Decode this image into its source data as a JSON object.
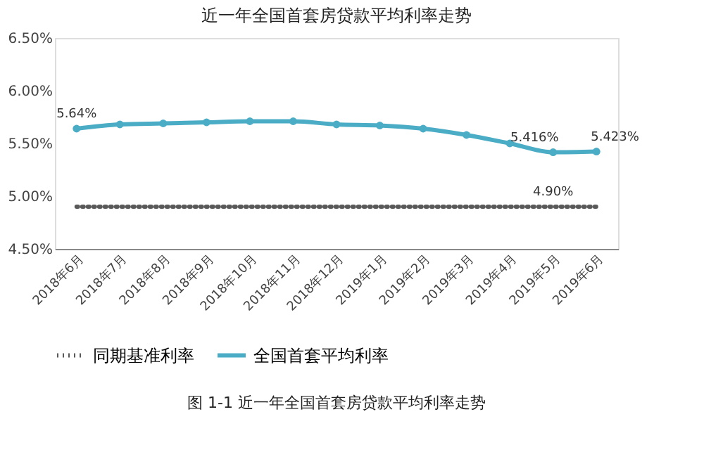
{
  "chart_data": {
    "type": "line",
    "title": "近一年全国首套房贷款平均利率走势",
    "categories": [
      "2018年6月",
      "2018年7月",
      "2018年8月",
      "2018年9月",
      "2018年10月",
      "2018年11月",
      "2018年12月",
      "2019年1月",
      "2019年2月",
      "2019年3月",
      "2019年4月",
      "2019年5月",
      "2019年6月"
    ],
    "series": [
      {
        "name": "同期基准利率",
        "color": "#595959",
        "line_style": "dotted",
        "marker": "none",
        "values": [
          4.9,
          4.9,
          4.9,
          4.9,
          4.9,
          4.9,
          4.9,
          4.9,
          4.9,
          4.9,
          4.9,
          4.9,
          4.9
        ],
        "value_labels": [
          null,
          null,
          null,
          null,
          null,
          null,
          null,
          null,
          null,
          null,
          null,
          "4.90%",
          null
        ]
      },
      {
        "name": "全国首套平均利率",
        "color": "#4bacc6",
        "line_style": "solid",
        "marker": "circle",
        "values": [
          5.64,
          5.68,
          5.69,
          5.7,
          5.71,
          5.71,
          5.68,
          5.67,
          5.64,
          5.58,
          5.5,
          5.416,
          5.423
        ],
        "value_labels": [
          "5.64%",
          null,
          null,
          null,
          null,
          null,
          null,
          null,
          null,
          null,
          null,
          "5.416%",
          "5.423%"
        ]
      }
    ],
    "ylim": [
      4.5,
      6.5
    ],
    "yticks": [
      {
        "value": 4.5,
        "label": "4.50%"
      },
      {
        "value": 5.0,
        "label": "5.00%"
      },
      {
        "value": 5.5,
        "label": "5.50%"
      },
      {
        "value": 6.0,
        "label": "6.00%"
      },
      {
        "value": 6.5,
        "label": "6.50%"
      }
    ],
    "grid": false,
    "legend": "bottom",
    "annotations": [
      "图 1-1 近一年全国首套房贷款平均利率走势"
    ]
  }
}
